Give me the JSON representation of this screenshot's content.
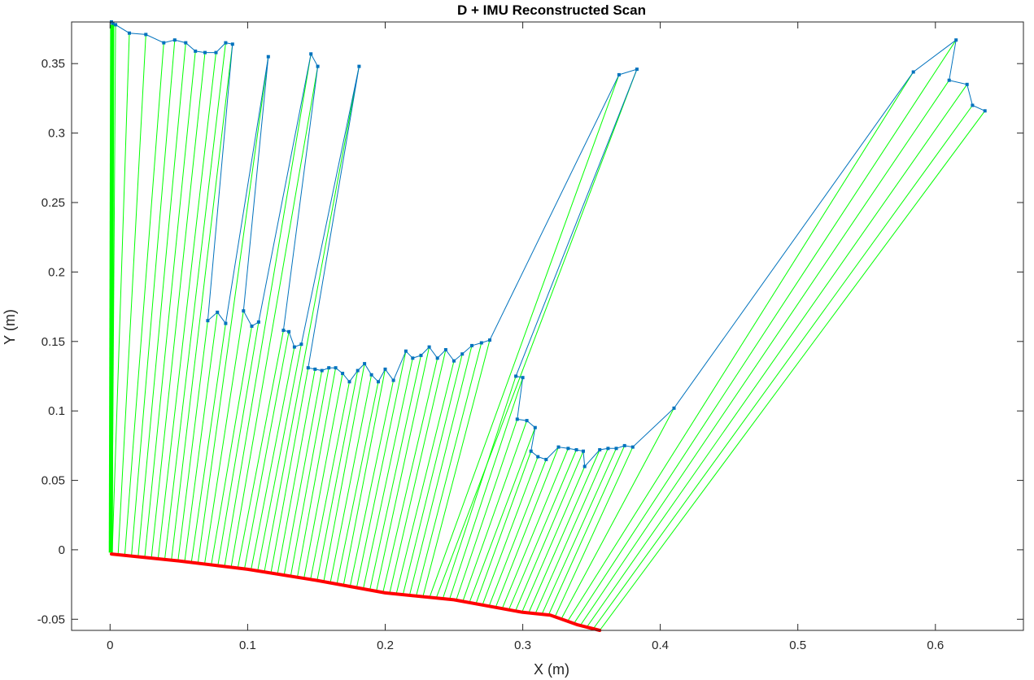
{
  "chart_data": {
    "type": "line",
    "title": "D + IMU Reconstructed Scan",
    "xlabel": "X (m)",
    "ylabel": "Y (m)",
    "xlim": [
      -0.028,
      0.664
    ],
    "ylim": [
      -0.058,
      0.38
    ],
    "xticks": [
      0,
      0.1,
      0.2,
      0.3,
      0.4,
      0.5,
      0.6
    ],
    "xtick_labels": [
      "0",
      "0.1",
      "0.2",
      "0.3",
      "0.4",
      "0.5",
      "0.6"
    ],
    "yticks": [
      -0.05,
      0,
      0.05,
      0.1,
      0.15,
      0.2,
      0.25,
      0.3,
      0.35
    ],
    "ytick_labels": [
      "-0.05",
      "0",
      "0.05",
      "0.1",
      "0.15",
      "0.2",
      "0.25",
      "0.3",
      "0.35"
    ],
    "grid": false,
    "legend": "none",
    "colors": {
      "scan": "#0072BD",
      "rays": "#00FF00",
      "trajectory": "#FF0000"
    },
    "trajectory_points": [
      [
        0.001,
        -0.003
      ],
      [
        0.05,
        -0.008
      ],
      [
        0.1,
        -0.014
      ],
      [
        0.15,
        -0.022
      ],
      [
        0.2,
        -0.031
      ],
      [
        0.25,
        -0.036
      ],
      [
        0.3,
        -0.045
      ],
      [
        0.32,
        -0.047
      ],
      [
        0.34,
        -0.054
      ],
      [
        0.356,
        -0.058
      ]
    ],
    "scan_points": [
      [
        0.001,
        0.38
      ],
      [
        0.002,
        0.379
      ],
      [
        0.004,
        0.378
      ],
      [
        0.014,
        0.372
      ],
      [
        0.026,
        0.371
      ],
      [
        0.039,
        0.365
      ],
      [
        0.047,
        0.367
      ],
      [
        0.055,
        0.365
      ],
      [
        0.062,
        0.359
      ],
      [
        0.069,
        0.358
      ],
      [
        0.077,
        0.358
      ],
      [
        0.084,
        0.365
      ],
      [
        0.089,
        0.364
      ],
      [
        0.071,
        0.165
      ],
      [
        0.078,
        0.171
      ],
      [
        0.084,
        0.163
      ],
      [
        0.115,
        0.355
      ],
      [
        0.097,
        0.172
      ],
      [
        0.103,
        0.161
      ],
      [
        0.108,
        0.164
      ],
      [
        0.146,
        0.357
      ],
      [
        0.151,
        0.348
      ],
      [
        0.126,
        0.158
      ],
      [
        0.13,
        0.157
      ],
      [
        0.134,
        0.146
      ],
      [
        0.139,
        0.148
      ],
      [
        0.181,
        0.348
      ],
      [
        0.144,
        0.131
      ],
      [
        0.149,
        0.13
      ],
      [
        0.154,
        0.129
      ],
      [
        0.159,
        0.131
      ],
      [
        0.164,
        0.131
      ],
      [
        0.169,
        0.127
      ],
      [
        0.174,
        0.121
      ],
      [
        0.18,
        0.129
      ],
      [
        0.185,
        0.134
      ],
      [
        0.19,
        0.126
      ],
      [
        0.195,
        0.121
      ],
      [
        0.2,
        0.13
      ],
      [
        0.206,
        0.122
      ],
      [
        0.215,
        0.143
      ],
      [
        0.22,
        0.138
      ],
      [
        0.226,
        0.14
      ],
      [
        0.232,
        0.146
      ],
      [
        0.238,
        0.138
      ],
      [
        0.244,
        0.144
      ],
      [
        0.25,
        0.136
      ],
      [
        0.256,
        0.141
      ],
      [
        0.263,
        0.147
      ],
      [
        0.27,
        0.149
      ],
      [
        0.276,
        0.151
      ],
      [
        0.37,
        0.342
      ],
      [
        0.383,
        0.346
      ],
      [
        0.295,
        0.125
      ],
      [
        0.3,
        0.124
      ],
      [
        0.296,
        0.094
      ],
      [
        0.303,
        0.093
      ],
      [
        0.309,
        0.088
      ],
      [
        0.306,
        0.071
      ],
      [
        0.311,
        0.067
      ],
      [
        0.317,
        0.065
      ],
      [
        0.326,
        0.074
      ],
      [
        0.333,
        0.073
      ],
      [
        0.339,
        0.072
      ],
      [
        0.344,
        0.071
      ],
      [
        0.345,
        0.06
      ],
      [
        0.356,
        0.072
      ],
      [
        0.362,
        0.073
      ],
      [
        0.368,
        0.073
      ],
      [
        0.374,
        0.075
      ],
      [
        0.38,
        0.074
      ],
      [
        0.41,
        0.102
      ],
      [
        0.584,
        0.344
      ],
      [
        0.615,
        0.367
      ],
      [
        0.61,
        0.338
      ],
      [
        0.623,
        0.335
      ],
      [
        0.627,
        0.32
      ],
      [
        0.636,
        0.316
      ]
    ]
  }
}
